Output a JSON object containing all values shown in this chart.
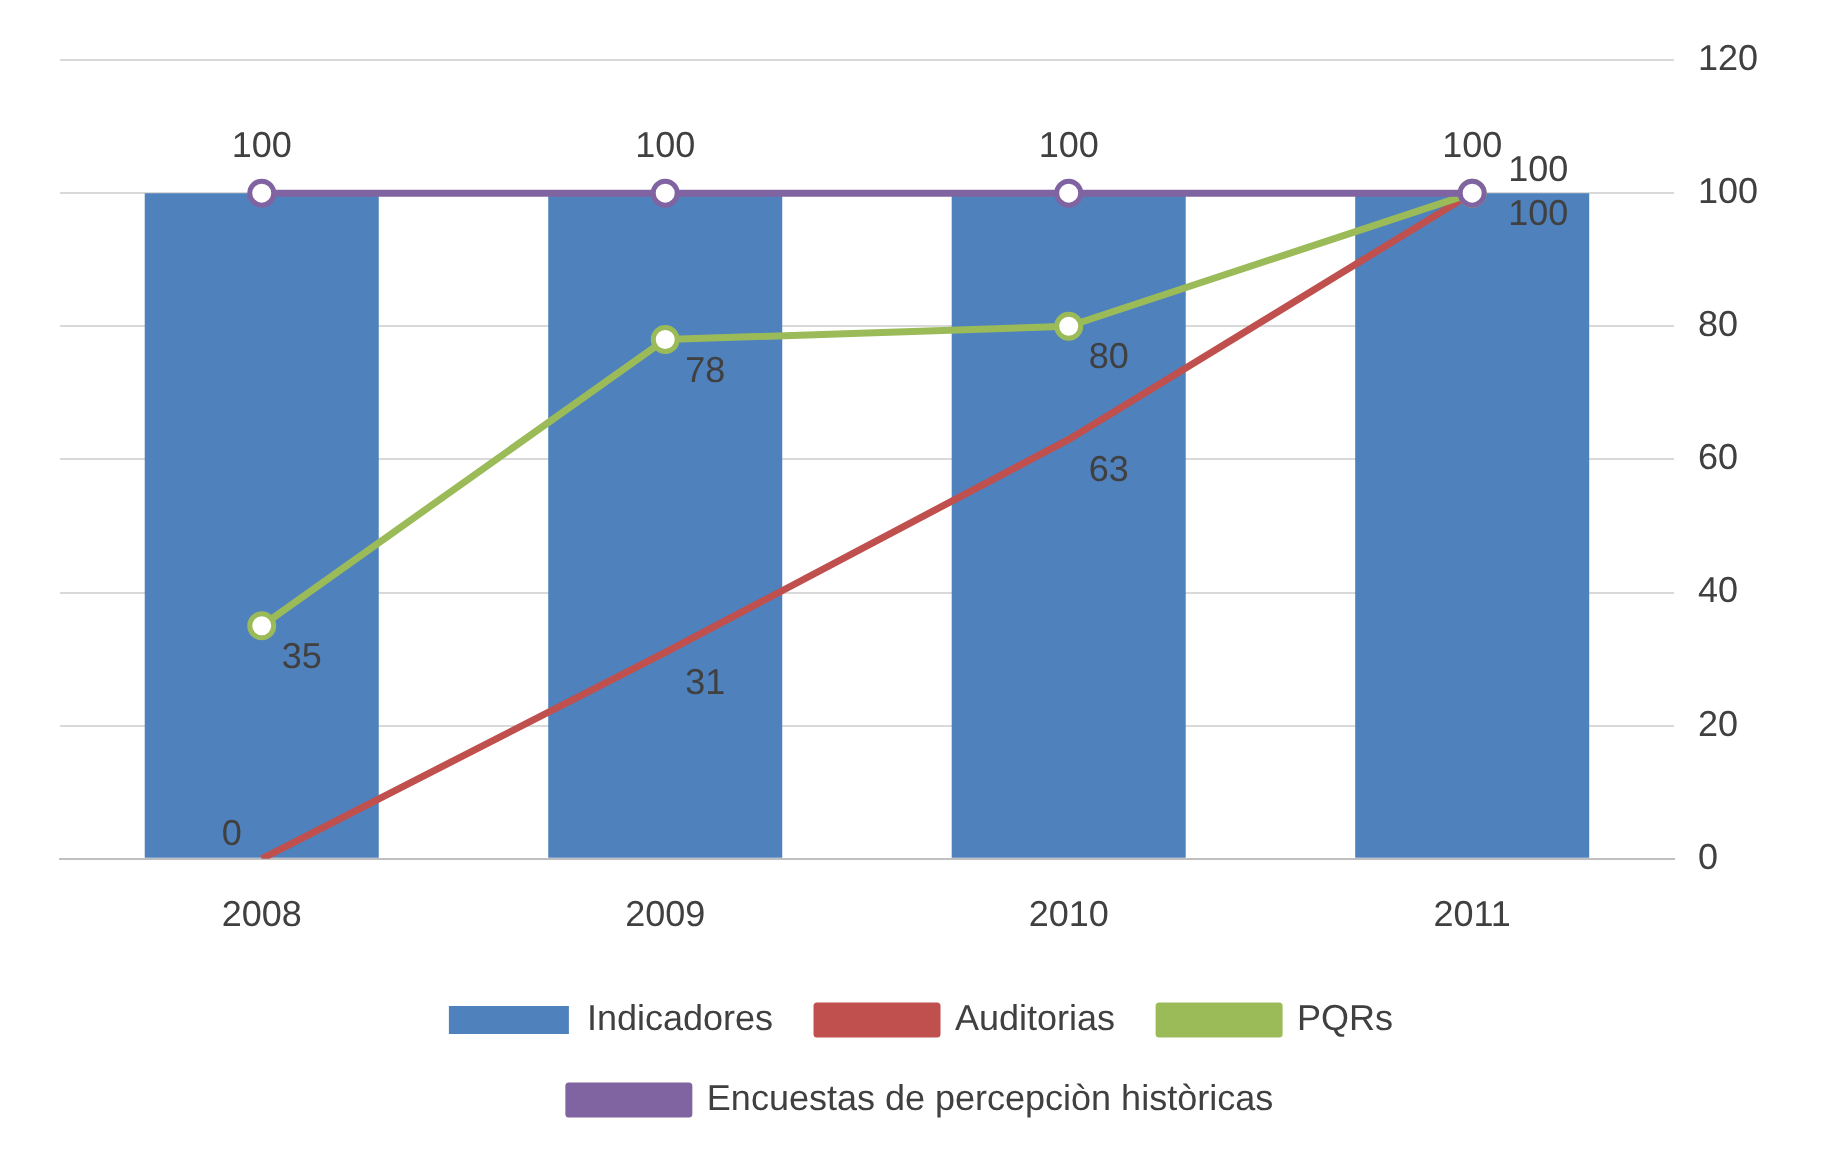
{
  "chart_data": {
    "type": "bar",
    "categories": [
      "2008",
      "2009",
      "2010",
      "2011"
    ],
    "series": [
      {
        "name": "Indicadores",
        "color": "#4f81bd",
        "values": [
          100,
          100,
          100,
          100
        ],
        "value_labels": [
          "100",
          "100",
          "100",
          "100"
        ]
      },
      {
        "name": "Auditorias",
        "type": "line",
        "color": "#c0504d",
        "marker": "none",
        "values": [
          0,
          31,
          63,
          100
        ],
        "value_labels": [
          "0",
          "31",
          "63",
          "100"
        ]
      },
      {
        "name": "PQRs",
        "type": "line",
        "color": "#9bbb59",
        "marker": "circle",
        "values": [
          35,
          78,
          80,
          100
        ],
        "value_labels": [
          "35",
          "78",
          "80",
          "100"
        ]
      },
      {
        "name": "Encuestas de percepciòn històricas",
        "type": "line",
        "color": "#8064a2",
        "marker": "circle",
        "values": [
          100,
          100,
          100,
          100
        ]
      }
    ],
    "ylim": [
      0,
      120
    ],
    "yticks": [
      0,
      20,
      40,
      60,
      80,
      100,
      120
    ],
    "grid": "y",
    "legend": "bottom"
  }
}
